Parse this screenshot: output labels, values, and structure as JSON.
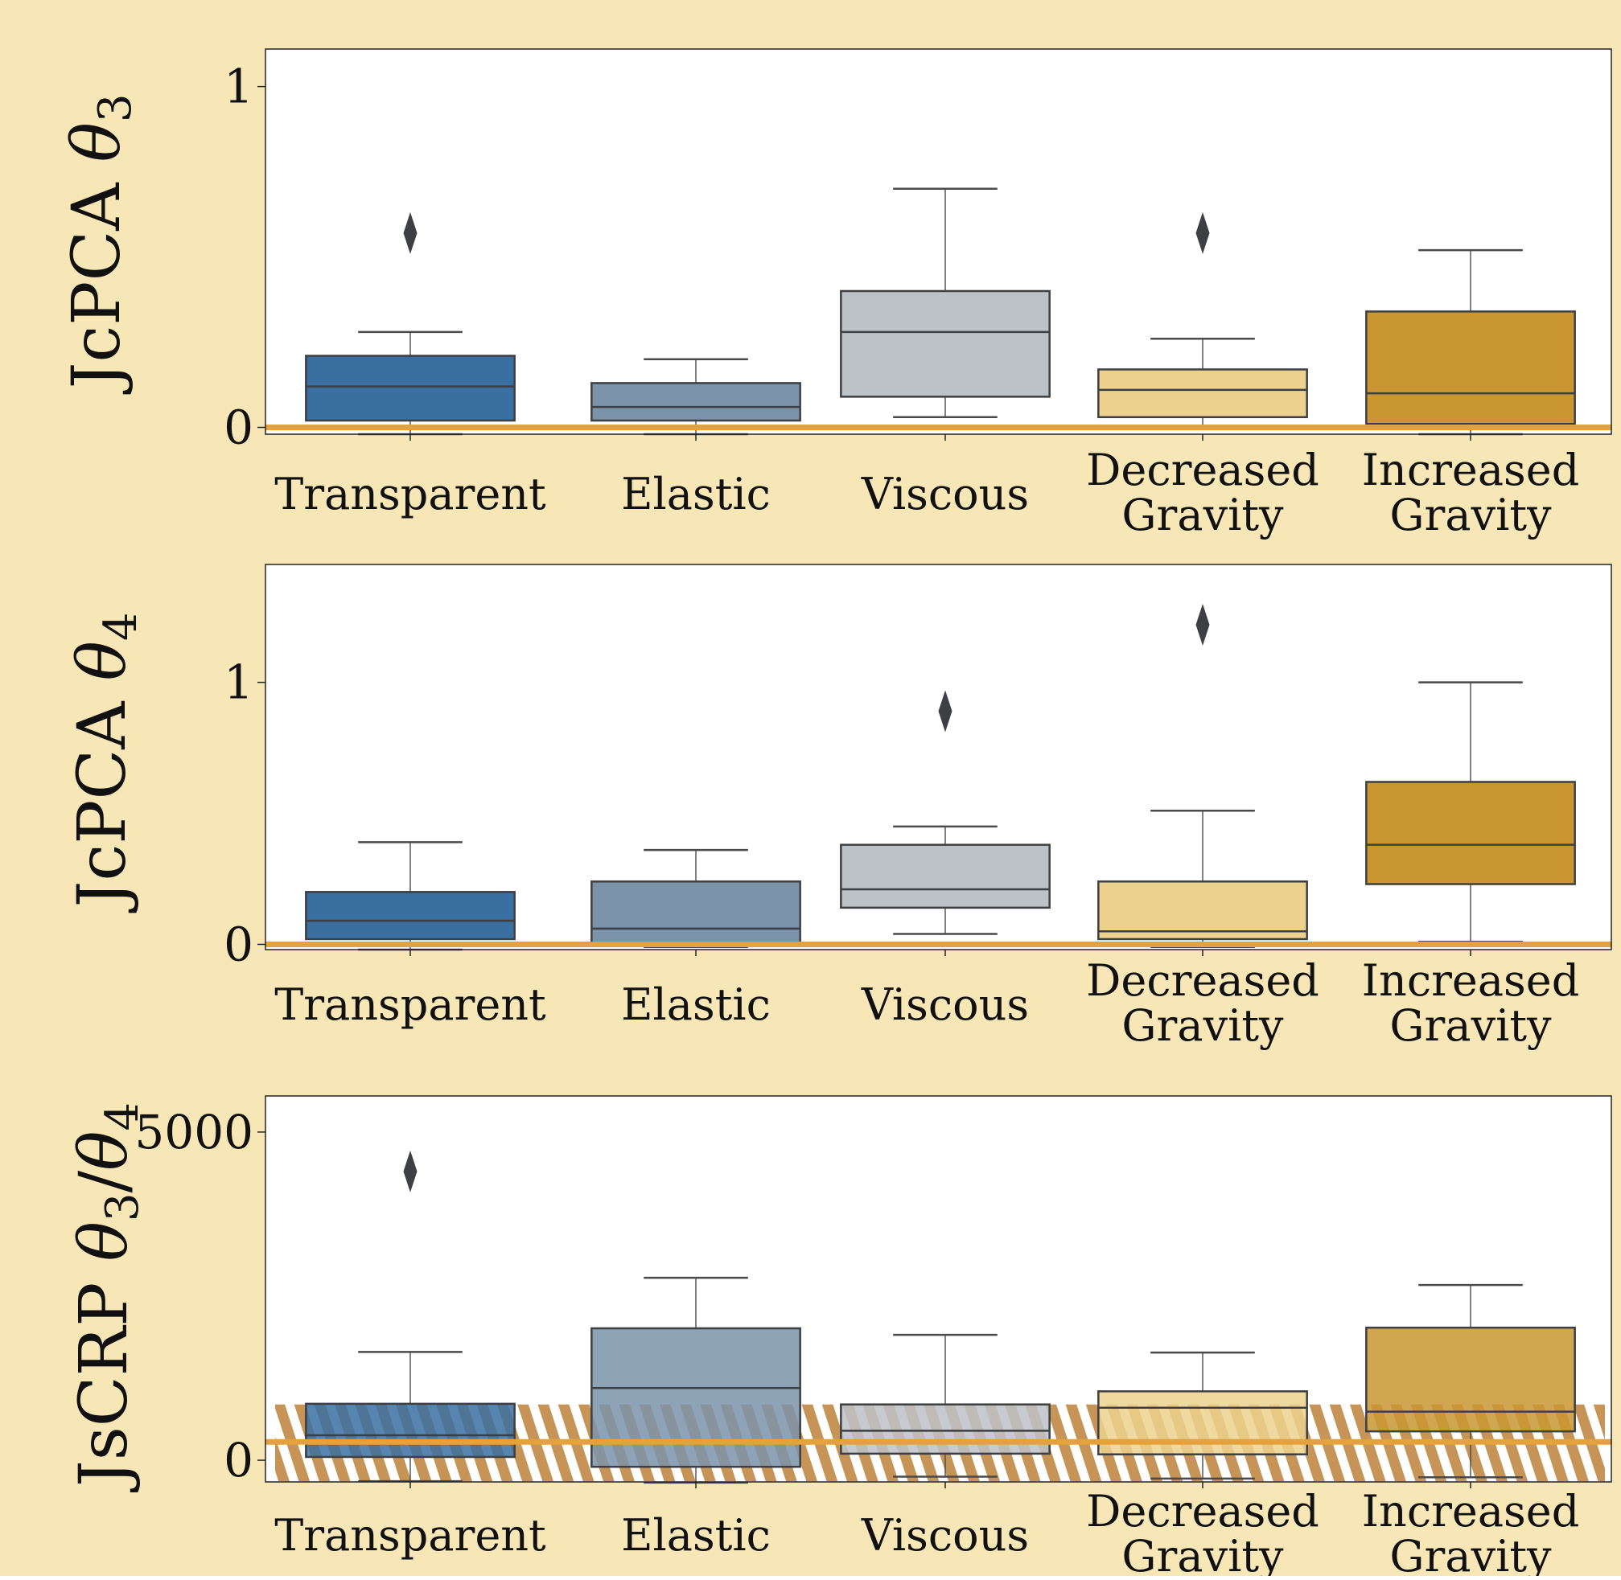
{
  "page": {
    "background": "#f7e7b6"
  },
  "styling": {
    "box_edge": "#3d3f42",
    "whisker": "#4a4a4a",
    "outlier": "#3d3f42",
    "reference_line": "#e5a13b",
    "hatch_band": "#c69456",
    "palette": [
      "#3a70a1",
      "#7b93a9",
      "#bdc2c7",
      "#ecd28e",
      "#c99632"
    ]
  },
  "chart_data": [
    {
      "type": "box",
      "ylabel_text": "JcPCA ",
      "ylabel_symbol": "θ",
      "ylabel_sub": "3",
      "categories": [
        "Transparent",
        "Elastic",
        "Viscous",
        "Decreased Gravity",
        "Increased Gravity"
      ],
      "yticks": [
        0,
        1
      ],
      "ytick_labels": [
        "0",
        "1"
      ],
      "ylim": [
        -0.02,
        1.11
      ],
      "reference_line": 0,
      "boxes": [
        {
          "whislo": -0.02,
          "q1": 0.02,
          "med": 0.12,
          "q3": 0.21,
          "whishi": 0.28,
          "fliers": [
            0.57
          ]
        },
        {
          "whislo": -0.02,
          "q1": 0.02,
          "med": 0.06,
          "q3": 0.13,
          "whishi": 0.2,
          "fliers": []
        },
        {
          "whislo": 0.03,
          "q1": 0.09,
          "med": 0.28,
          "q3": 0.4,
          "whishi": 0.7,
          "fliers": []
        },
        {
          "whislo": 0.0,
          "q1": 0.03,
          "med": 0.11,
          "q3": 0.17,
          "whishi": 0.26,
          "fliers": [
            0.57
          ]
        },
        {
          "whislo": -0.02,
          "q1": 0.01,
          "med": 0.1,
          "q3": 0.34,
          "whishi": 0.52,
          "fliers": []
        }
      ]
    },
    {
      "type": "box",
      "ylabel_text": "JcPCA ",
      "ylabel_symbol": "θ",
      "ylabel_sub": "4",
      "categories": [
        "Transparent",
        "Elastic",
        "Viscous",
        "Decreased Gravity",
        "Increased Gravity"
      ],
      "yticks": [
        0,
        1
      ],
      "ytick_labels": [
        "0",
        "1"
      ],
      "ylim": [
        -0.02,
        1.45
      ],
      "reference_line": 0,
      "boxes": [
        {
          "whislo": -0.02,
          "q1": 0.02,
          "med": 0.09,
          "q3": 0.2,
          "whishi": 0.39,
          "fliers": []
        },
        {
          "whislo": -0.01,
          "q1": 0.0,
          "med": 0.06,
          "q3": 0.24,
          "whishi": 0.36,
          "fliers": []
        },
        {
          "whislo": 0.04,
          "q1": 0.14,
          "med": 0.21,
          "q3": 0.38,
          "whishi": 0.45,
          "fliers": [
            0.89
          ]
        },
        {
          "whislo": -0.01,
          "q1": 0.02,
          "med": 0.05,
          "q3": 0.24,
          "whishi": 0.51,
          "fliers": [
            1.22
          ]
        },
        {
          "whislo": 0.01,
          "q1": 0.23,
          "med": 0.38,
          "q3": 0.62,
          "whishi": 1.0,
          "fliers": []
        }
      ]
    },
    {
      "type": "box",
      "ylabel_text": "JsCRP ",
      "ylabel_symbol": "θ",
      "ylabel_sub": "3",
      "ylabel_sep": "/",
      "ylabel_symbol2": "θ",
      "ylabel_sub2": "4",
      "categories": [
        "Transparent",
        "Elastic",
        "Viscous",
        "Decreased Gravity",
        "Increased Gravity"
      ],
      "yticks": [
        0,
        5000
      ],
      "ytick_labels": [
        "0",
        "5000"
      ],
      "ylim": [
        -330,
        5550
      ],
      "reference_line": 280,
      "hatch_band": [
        -320,
        850
      ],
      "boxes": [
        {
          "whislo": -320,
          "q1": 50,
          "med": 380,
          "q3": 860,
          "whishi": 1650,
          "fliers": [
            4400
          ]
        },
        {
          "whislo": -340,
          "q1": -100,
          "med": 1100,
          "q3": 2010,
          "whishi": 2780,
          "fliers": []
        },
        {
          "whislo": -250,
          "q1": 100,
          "med": 450,
          "q3": 850,
          "whishi": 1910,
          "fliers": []
        },
        {
          "whislo": -280,
          "q1": 90,
          "med": 800,
          "q3": 1050,
          "whishi": 1640,
          "fliers": []
        },
        {
          "whislo": -260,
          "q1": 440,
          "med": 740,
          "q3": 2020,
          "whishi": 2670,
          "fliers": []
        }
      ]
    }
  ]
}
